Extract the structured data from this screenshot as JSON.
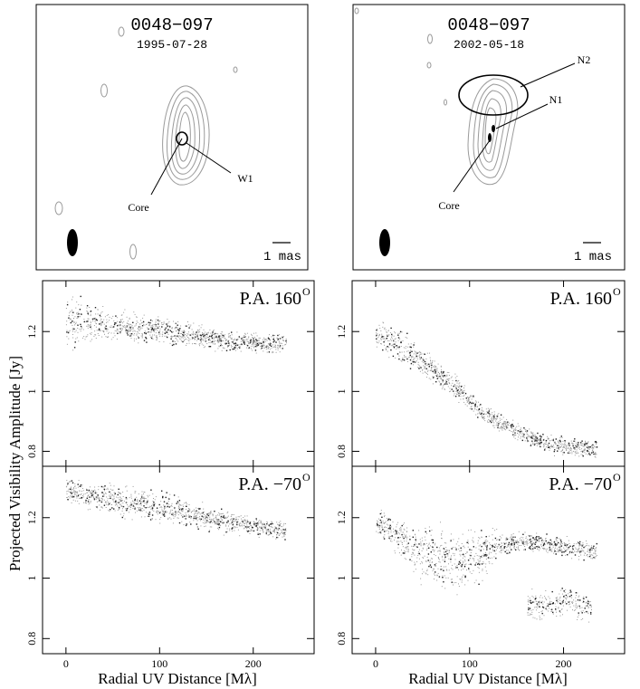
{
  "shared": {
    "ylabel": "Projected Visibility Amplitude [Jy]",
    "xlabel": "Radial UV Distance [Mλ]"
  },
  "maps": [
    {
      "source": "0048−097",
      "date": "1995-07-28",
      "scale_label": "1 mas",
      "labels": [
        "Core",
        "W1"
      ]
    },
    {
      "source": "0048−097",
      "date": "2002-05-18",
      "scale_label": "1 mas",
      "labels": [
        "Core",
        "N1",
        "N2"
      ]
    }
  ],
  "chart_data": [
    {
      "type": "scatter",
      "panel": "top-left",
      "epoch": "1995-07-28",
      "pa_label": "P.A. 160",
      "pa_sup": "O",
      "xlim": [
        -25,
        265
      ],
      "ylim": [
        0.75,
        1.37
      ],
      "yticks": [
        0.8,
        1.0,
        1.2
      ],
      "ytick_labels": [
        "0.8",
        "1",
        "1.2"
      ],
      "x": [
        5,
        15,
        30,
        50,
        70,
        90,
        110,
        130,
        150,
        170,
        190,
        210,
        230
      ],
      "y": [
        1.23,
        1.24,
        1.23,
        1.22,
        1.21,
        1.21,
        1.2,
        1.19,
        1.18,
        1.17,
        1.17,
        1.16,
        1.16
      ],
      "spread": [
        0.08,
        0.08,
        0.06,
        0.05,
        0.05,
        0.04,
        0.04,
        0.04,
        0.04,
        0.03,
        0.03,
        0.03,
        0.03
      ]
    },
    {
      "type": "scatter",
      "panel": "bottom-left",
      "epoch": "1995-07-28",
      "pa_label": "P.A. −70",
      "pa_sup": "O",
      "xlim": [
        -25,
        265
      ],
      "ylim": [
        0.75,
        1.37
      ],
      "xticks": [
        0,
        100,
        200
      ],
      "xtick_labels": [
        "0",
        "100",
        "200"
      ],
      "yticks": [
        0.8,
        1.0,
        1.2
      ],
      "ytick_labels": [
        "0.8",
        "1",
        "1.2"
      ],
      "x": [
        5,
        15,
        30,
        50,
        70,
        90,
        110,
        130,
        150,
        170,
        190,
        210,
        230
      ],
      "y": [
        1.29,
        1.28,
        1.27,
        1.26,
        1.25,
        1.24,
        1.23,
        1.22,
        1.2,
        1.19,
        1.18,
        1.17,
        1.16
      ],
      "spread": [
        0.04,
        0.04,
        0.04,
        0.05,
        0.05,
        0.05,
        0.05,
        0.04,
        0.04,
        0.04,
        0.03,
        0.03,
        0.03
      ]
    },
    {
      "type": "scatter",
      "panel": "top-right",
      "epoch": "2002-05-18",
      "pa_label": "P.A. 160",
      "pa_sup": "O",
      "xlim": [
        -25,
        265
      ],
      "ylim": [
        0.75,
        1.37
      ],
      "yticks": [
        0.8,
        1.0,
        1.2
      ],
      "ytick_labels": [
        "0.8",
        "1",
        "1.2"
      ],
      "x": [
        5,
        15,
        30,
        50,
        70,
        90,
        110,
        130,
        150,
        170,
        190,
        210,
        230
      ],
      "y": [
        1.19,
        1.17,
        1.14,
        1.1,
        1.05,
        1.0,
        0.94,
        0.9,
        0.87,
        0.84,
        0.82,
        0.81,
        0.81
      ],
      "spread": [
        0.05,
        0.05,
        0.05,
        0.04,
        0.04,
        0.04,
        0.03,
        0.03,
        0.03,
        0.03,
        0.03,
        0.03,
        0.03
      ]
    },
    {
      "type": "scatter",
      "panel": "bottom-right",
      "epoch": "2002-05-18",
      "pa_label": "P.A. −70",
      "pa_sup": "O",
      "xlim": [
        -25,
        265
      ],
      "ylim": [
        0.75,
        1.37
      ],
      "xticks": [
        0,
        100,
        200
      ],
      "xtick_labels": [
        "0",
        "100",
        "200"
      ],
      "yticks": [
        0.8,
        1.0,
        1.2
      ],
      "ytick_labels": [
        "0.8",
        "1",
        "1.2"
      ],
      "x": [
        5,
        15,
        30,
        50,
        70,
        90,
        110,
        130,
        150,
        170,
        190,
        210,
        230
      ],
      "y": [
        1.18,
        1.16,
        1.12,
        1.08,
        1.07,
        1.06,
        1.08,
        1.11,
        1.12,
        1.12,
        1.11,
        1.1,
        1.09
      ],
      "spread": [
        0.04,
        0.05,
        0.07,
        0.09,
        0.1,
        0.1,
        0.09,
        0.04,
        0.03,
        0.03,
        0.03,
        0.03,
        0.03
      ],
      "x2": [
        160,
        170,
        180,
        190,
        200,
        210,
        220,
        230
      ],
      "y2": [
        0.9,
        0.91,
        0.92,
        0.91,
        0.93,
        0.92,
        0.91,
        0.9
      ],
      "spread2": [
        0.05,
        0.05,
        0.05,
        0.05,
        0.05,
        0.05,
        0.05,
        0.05
      ]
    }
  ]
}
